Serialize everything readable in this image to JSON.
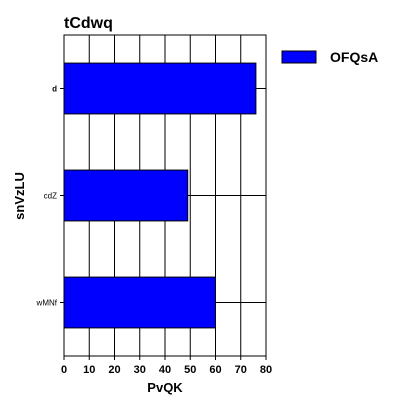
{
  "chart_data": {
    "type": "bar",
    "orientation": "horizontal",
    "title": "tCdwq",
    "xlabel": "PvQK",
    "ylabel": "snVzLU",
    "categories": [
      "d",
      "cdZ",
      "wMNf"
    ],
    "series": [
      {
        "name": "OFQsA",
        "color": "#0000ff",
        "values": [
          76,
          49,
          60
        ]
      }
    ],
    "xlim": [
      0,
      80
    ],
    "xticks": [
      0,
      10,
      20,
      30,
      40,
      50,
      60,
      70,
      80
    ],
    "grid": true,
    "legend_position": "right"
  }
}
